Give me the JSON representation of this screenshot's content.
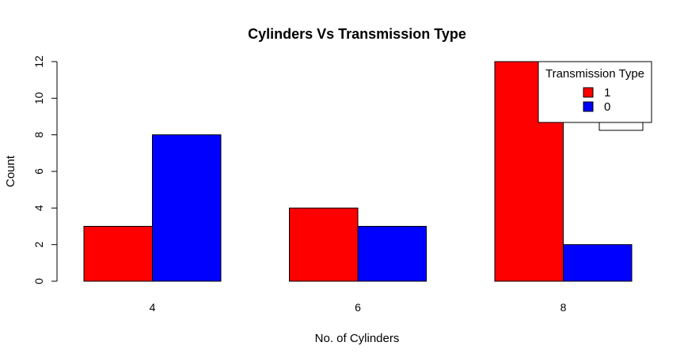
{
  "chart_data": {
    "type": "bar",
    "title": "Cylinders Vs Transmission Type",
    "xlabel": "No. of Cylinders",
    "ylabel": "Count",
    "categories": [
      "4",
      "6",
      "8"
    ],
    "series": [
      {
        "name": "1",
        "values": [
          3,
          4,
          12
        ],
        "color": "#ff0000"
      },
      {
        "name": "0",
        "values": [
          8,
          3,
          2
        ],
        "color": "#0000ff"
      }
    ],
    "ylim": [
      0,
      12
    ],
    "yticks": [
      0,
      2,
      4,
      6,
      8,
      10,
      12
    ],
    "grid": false,
    "legend": {
      "title": "Transmission Type",
      "placement": "top-right"
    }
  }
}
